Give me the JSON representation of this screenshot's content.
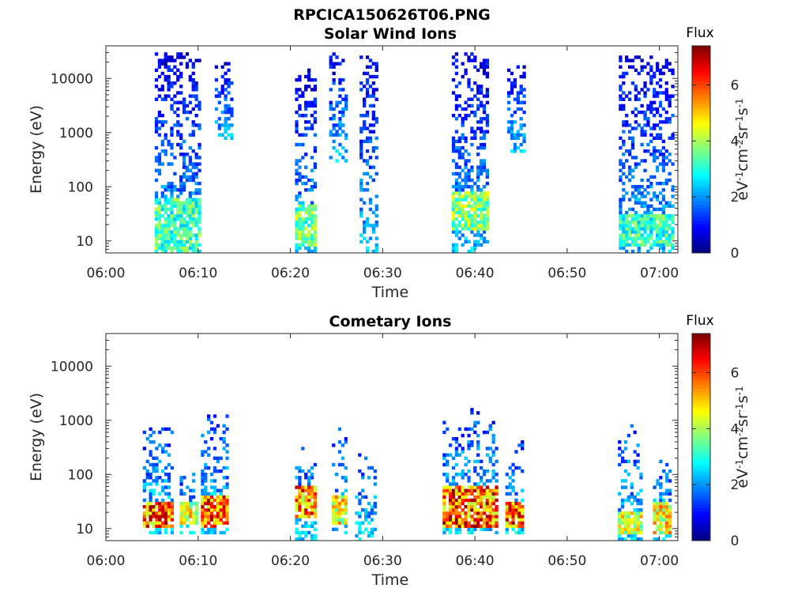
{
  "figure_title": "RPCICA150626T06.PNG",
  "chart_data": [
    {
      "type": "heatmap",
      "title": "Solar Wind Ions",
      "xlabel": "Time",
      "ylabel": "Energy (eV)",
      "y_scale": "log",
      "ylim": [
        6,
        40000
      ],
      "xlim": [
        "06:00",
        "07:02"
      ],
      "x_ticks": [
        "06:00",
        "06:10",
        "06:20",
        "06:30",
        "06:40",
        "06:50",
        "07:00"
      ],
      "y_ticks": [
        "10",
        "100",
        "1000",
        "10000"
      ],
      "colorbar": {
        "title": "Flux",
        "label": "eV-1cm-2sr-1s-1",
        "range": [
          0,
          7.4
        ],
        "ticks": [
          "0",
          "2",
          "4",
          "6"
        ],
        "colormap": "jet"
      },
      "grid": false,
      "bursts": [
        {
          "name": "06:05-06:10",
          "t_start_min": 5.3,
          "t_end_min": 10.0,
          "e_min": 6,
          "e_max": 30000,
          "flux_peak": 4.2,
          "low_energy_core": [
            6,
            60
          ]
        },
        {
          "name": "06:12-06:13",
          "t_start_min": 11.8,
          "t_end_min": 13.5,
          "e_min": 700,
          "e_max": 20000,
          "flux_peak": 2.0
        },
        {
          "name": "06:21-06:23",
          "t_start_min": 20.5,
          "t_end_min": 22.7,
          "e_min": 6,
          "e_max": 16000,
          "flux_peak": 4.5,
          "low_energy_core": [
            8,
            50
          ]
        },
        {
          "name": "06:24-06:26",
          "t_start_min": 24.2,
          "t_end_min": 26.0,
          "e_min": 300,
          "e_max": 30000,
          "flux_peak": 2.0
        },
        {
          "name": "06:28-06:29",
          "t_start_min": 27.5,
          "t_end_min": 29.2,
          "e_min": 6,
          "e_max": 28000,
          "flux_peak": 3.2
        },
        {
          "name": "06:37-06:42",
          "t_start_min": 37.5,
          "t_end_min": 41.5,
          "e_min": 6,
          "e_max": 30000,
          "flux_peak": 4.8,
          "low_energy_core": [
            15,
            80
          ]
        },
        {
          "name": "06:43-06:45",
          "t_start_min": 43.5,
          "t_end_min": 45.2,
          "e_min": 400,
          "e_max": 17000,
          "flux_peak": 1.8
        },
        {
          "name": "06:56-07:01",
          "t_start_min": 55.6,
          "t_end_min": 61.3,
          "e_min": 6,
          "e_max": 25000,
          "flux_peak": 4.0,
          "low_energy_core": [
            8,
            30
          ]
        }
      ]
    },
    {
      "type": "heatmap",
      "title": "Cometary Ions",
      "xlabel": "Time",
      "ylabel": "Energy (eV)",
      "y_scale": "log",
      "ylim": [
        6,
        40000
      ],
      "xlim": [
        "06:00",
        "07:02"
      ],
      "x_ticks": [
        "06:00",
        "06:10",
        "06:20",
        "06:30",
        "06:40",
        "06:50",
        "07:00"
      ],
      "y_ticks": [
        "10",
        "100",
        "1000",
        "10000"
      ],
      "colorbar": {
        "title": "Flux",
        "label": "eV-1cm-2sr-1s-1",
        "range": [
          0,
          7.4
        ],
        "ticks": [
          "0",
          "2",
          "4",
          "6"
        ],
        "colormap": "jet"
      },
      "grid": false,
      "bursts": [
        {
          "name": "06:04-06:07",
          "t_start_min": 4.0,
          "t_end_min": 7.0,
          "e_min": 8,
          "e_max": 750,
          "flux_peak": 7.3,
          "core": [
            10,
            30
          ]
        },
        {
          "name": "06:08-06:10",
          "t_start_min": 8.0,
          "t_end_min": 10.0,
          "e_min": 8,
          "e_max": 150,
          "flux_peak": 5.6,
          "core": [
            12,
            30
          ]
        },
        {
          "name": "06:10-06:13",
          "t_start_min": 10.3,
          "t_end_min": 13.3,
          "e_min": 8,
          "e_max": 1300,
          "flux_peak": 7.4,
          "core": [
            10,
            40
          ]
        },
        {
          "name": "06:21-06:23",
          "t_start_min": 20.5,
          "t_end_min": 22.5,
          "e_min": 6,
          "e_max": 400,
          "flux_peak": 7.0,
          "core": [
            15,
            60
          ]
        },
        {
          "name": "06:24-06:26",
          "t_start_min": 24.5,
          "t_end_min": 26.0,
          "e_min": 8,
          "e_max": 700,
          "flux_peak": 5.8,
          "core": [
            12,
            40
          ]
        },
        {
          "name": "06:27-06:29",
          "t_start_min": 27.0,
          "t_end_min": 29.3,
          "e_min": 6,
          "e_max": 250,
          "flux_peak": 3.0
        },
        {
          "name": "06:36-06:42",
          "t_start_min": 36.5,
          "t_end_min": 42.5,
          "e_min": 8,
          "e_max": 1600,
          "flux_peak": 7.4,
          "core": [
            10,
            60
          ]
        },
        {
          "name": "06:43-06:45",
          "t_start_min": 43.3,
          "t_end_min": 45.3,
          "e_min": 8,
          "e_max": 450,
          "flux_peak": 7.3,
          "core": [
            10,
            30
          ]
        },
        {
          "name": "06:55-06:58",
          "t_start_min": 55.5,
          "t_end_min": 58.0,
          "e_min": 6,
          "e_max": 800,
          "flux_peak": 5.5,
          "core": [
            8,
            20
          ]
        },
        {
          "name": "06:59-07:01",
          "t_start_min": 59.3,
          "t_end_min": 61.3,
          "e_min": 6,
          "e_max": 200,
          "flux_peak": 6.0,
          "core": [
            8,
            30
          ]
        }
      ]
    }
  ]
}
